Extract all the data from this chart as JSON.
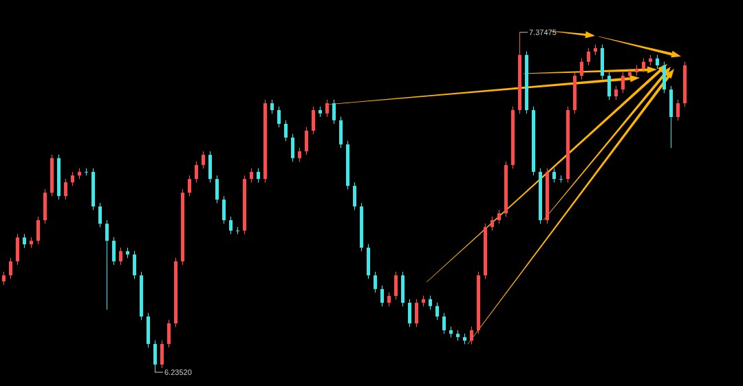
{
  "chart_data": {
    "type": "candlestick",
    "categories": [
      null,
      null,
      null,
      null,
      null,
      null,
      null,
      null,
      null,
      null,
      null,
      null,
      null,
      null,
      null,
      null,
      null,
      null,
      null,
      null,
      null,
      null,
      null,
      null,
      null,
      null,
      null,
      null,
      null,
      null,
      null,
      null,
      null,
      null,
      null,
      null,
      null,
      null,
      null,
      null,
      null,
      null,
      null,
      null,
      null,
      null,
      null,
      null,
      null,
      null,
      null,
      null,
      null,
      null,
      null,
      null,
      null,
      null,
      null,
      null,
      null,
      null,
      null,
      null,
      null,
      null,
      null,
      null,
      null,
      null,
      null,
      null,
      null,
      null,
      null,
      null,
      null,
      null,
      null,
      null,
      null,
      null,
      null,
      null,
      null,
      null,
      null,
      null,
      null,
      null,
      null,
      null,
      null,
      null,
      null,
      null,
      null,
      null,
      null,
      null
    ],
    "ohlc": [
      [
        6.54,
        6.572,
        6.528,
        6.56
      ],
      [
        6.56,
        6.619,
        6.548,
        6.607
      ],
      [
        6.607,
        6.699,
        6.595,
        6.687
      ],
      [
        6.687,
        6.699,
        6.652,
        6.664
      ],
      [
        6.664,
        6.688,
        6.652,
        6.676
      ],
      [
        6.676,
        6.757,
        6.664,
        6.745
      ],
      [
        6.745,
        6.849,
        6.733,
        6.837
      ],
      [
        6.837,
        6.965,
        6.825,
        6.953
      ],
      [
        6.953,
        6.965,
        6.814,
        6.826
      ],
      [
        6.826,
        6.884,
        6.814,
        6.872
      ],
      [
        6.872,
        6.907,
        6.86,
        6.895
      ],
      [
        6.895,
        6.919,
        6.883,
        6.907
      ],
      [
        6.907,
        6.919,
        6.895,
        6.907
      ],
      [
        6.907,
        6.919,
        6.779,
        6.791
      ],
      [
        6.791,
        6.803,
        6.721,
        6.733
      ],
      [
        6.733,
        6.745,
        6.445,
        6.676
      ],
      [
        6.676,
        6.688,
        6.595,
        6.607
      ],
      [
        6.607,
        6.653,
        6.595,
        6.641
      ],
      [
        6.641,
        6.653,
        6.618,
        6.63
      ],
      [
        6.63,
        6.642,
        6.548,
        6.56
      ],
      [
        6.56,
        6.572,
        6.41,
        6.422
      ],
      [
        6.422,
        6.434,
        6.318,
        6.33
      ],
      [
        6.33,
        6.342,
        6.2352,
        6.261
      ],
      [
        6.261,
        6.342,
        6.249,
        6.33
      ],
      [
        6.33,
        6.411,
        6.318,
        6.399
      ],
      [
        6.399,
        6.619,
        6.387,
        6.607
      ],
      [
        6.607,
        6.849,
        6.595,
        6.837
      ],
      [
        6.837,
        6.895,
        6.825,
        6.883
      ],
      [
        6.883,
        6.942,
        6.871,
        6.93
      ],
      [
        6.93,
        6.976,
        6.918,
        6.964
      ],
      [
        6.964,
        6.976,
        6.871,
        6.883
      ],
      [
        6.883,
        6.895,
        6.802,
        6.814
      ],
      [
        6.814,
        6.826,
        6.733,
        6.745
      ],
      [
        6.745,
        6.757,
        6.698,
        6.71
      ],
      [
        6.71,
        6.722,
        6.698,
        6.71
      ],
      [
        6.71,
        6.895,
        6.698,
        6.883
      ],
      [
        6.883,
        6.919,
        6.871,
        6.907
      ],
      [
        6.907,
        6.919,
        6.871,
        6.883
      ],
      [
        6.883,
        7.149,
        6.871,
        7.137
      ],
      [
        7.137,
        7.149,
        7.102,
        7.114
      ],
      [
        7.114,
        7.126,
        7.056,
        7.068
      ],
      [
        7.068,
        7.08,
        7.01,
        7.022
      ],
      [
        7.022,
        7.034,
        6.941,
        6.953
      ],
      [
        6.953,
        6.988,
        6.941,
        6.976
      ],
      [
        6.976,
        7.057,
        6.964,
        7.045
      ],
      [
        7.045,
        7.126,
        7.033,
        7.114
      ],
      [
        7.114,
        7.126,
        7.091,
        7.103
      ],
      [
        7.103,
        7.149,
        7.091,
        7.137
      ],
      [
        7.137,
        7.149,
        7.068,
        7.08
      ],
      [
        7.08,
        7.092,
        6.987,
        6.999
      ],
      [
        6.999,
        7.011,
        6.848,
        6.86
      ],
      [
        6.86,
        6.872,
        6.779,
        6.791
      ],
      [
        6.791,
        6.803,
        6.641,
        6.653
      ],
      [
        6.653,
        6.665,
        6.548,
        6.56
      ],
      [
        6.56,
        6.572,
        6.502,
        6.514
      ],
      [
        6.514,
        6.526,
        6.456,
        6.468
      ],
      [
        6.468,
        6.503,
        6.456,
        6.491
      ],
      [
        6.491,
        6.572,
        6.479,
        6.56
      ],
      [
        6.56,
        6.572,
        6.456,
        6.468
      ],
      [
        6.468,
        6.48,
        6.387,
        6.399
      ],
      [
        6.399,
        6.48,
        6.387,
        6.468
      ],
      [
        6.468,
        6.492,
        6.456,
        6.48
      ],
      [
        6.48,
        6.492,
        6.445,
        6.457
      ],
      [
        6.457,
        6.469,
        6.41,
        6.422
      ],
      [
        6.422,
        6.434,
        6.364,
        6.376
      ],
      [
        6.376,
        6.388,
        6.352,
        6.364
      ],
      [
        6.364,
        6.376,
        6.341,
        6.353
      ],
      [
        6.353,
        6.365,
        6.329,
        6.341
      ],
      [
        6.341,
        6.388,
        6.329,
        6.376
      ],
      [
        6.376,
        6.572,
        6.364,
        6.56
      ],
      [
        6.56,
        6.734,
        6.548,
        6.722
      ],
      [
        6.722,
        6.757,
        6.71,
        6.745
      ],
      [
        6.745,
        6.78,
        6.733,
        6.768
      ],
      [
        6.768,
        6.942,
        6.756,
        6.93
      ],
      [
        6.93,
        7.126,
        6.918,
        7.114
      ],
      [
        7.114,
        7.37475,
        7.102,
        7.299
      ],
      [
        7.299,
        7.311,
        7.102,
        7.114
      ],
      [
        7.114,
        7.126,
        6.895,
        6.907
      ],
      [
        6.907,
        6.919,
        6.733,
        6.745
      ],
      [
        6.745,
        6.919,
        6.733,
        6.907
      ],
      [
        6.907,
        6.919,
        6.871,
        6.883
      ],
      [
        6.883,
        6.895,
        6.871,
        6.883
      ],
      [
        6.883,
        7.126,
        6.871,
        7.114
      ],
      [
        7.114,
        7.241,
        7.102,
        7.229
      ],
      [
        7.229,
        7.288,
        7.217,
        7.276
      ],
      [
        7.276,
        7.322,
        7.264,
        7.31
      ],
      [
        7.31,
        7.334,
        7.298,
        7.322
      ],
      [
        7.322,
        7.334,
        7.217,
        7.229
      ],
      [
        7.229,
        7.241,
        7.148,
        7.16
      ],
      [
        7.16,
        7.195,
        7.148,
        7.183
      ],
      [
        7.183,
        7.241,
        7.171,
        7.229
      ],
      [
        7.229,
        7.253,
        7.217,
        7.241
      ],
      [
        7.241,
        7.265,
        7.229,
        7.253
      ],
      [
        7.253,
        7.288,
        7.241,
        7.276
      ],
      [
        7.276,
        7.299,
        7.264,
        7.287
      ],
      [
        7.287,
        7.299,
        7.252,
        7.264
      ],
      [
        7.264,
        7.276,
        7.171,
        7.183
      ],
      [
        7.183,
        7.195,
        6.987,
        7.091
      ],
      [
        7.091,
        7.149,
        7.079,
        7.137
      ],
      [
        7.137,
        7.276,
        7.125,
        7.264
      ]
    ],
    "colors": [
      "#ff4d4d",
      "#ff4d4d",
      "#ff4d4d",
      "#3ee8e8",
      "#ff4d4d",
      "#ff4d4d",
      "#ff4d4d",
      "#ff4d4d",
      "#3ee8e8",
      "#ff4d4d",
      "#ff4d4d",
      "#ff4d4d",
      "#3ee8e8",
      "#3ee8e8",
      "#3ee8e8",
      "#3ee8e8",
      "#3ee8e8",
      "#ff4d4d",
      "#3ee8e8",
      "#3ee8e8",
      "#3ee8e8",
      "#3ee8e8",
      "#3ee8e8",
      "#ff4d4d",
      "#ff4d4d",
      "#ff4d4d",
      "#ff4d4d",
      "#ff4d4d",
      "#ff4d4d",
      "#ff4d4d",
      "#3ee8e8",
      "#3ee8e8",
      "#3ee8e8",
      "#3ee8e8",
      "#3ee8e8",
      "#ff4d4d",
      "#ff4d4d",
      "#3ee8e8",
      "#ff4d4d",
      "#3ee8e8",
      "#3ee8e8",
      "#3ee8e8",
      "#3ee8e8",
      "#ff4d4d",
      "#ff4d4d",
      "#ff4d4d",
      "#3ee8e8",
      "#ff4d4d",
      "#3ee8e8",
      "#3ee8e8",
      "#3ee8e8",
      "#3ee8e8",
      "#3ee8e8",
      "#3ee8e8",
      "#3ee8e8",
      "#3ee8e8",
      "#ff4d4d",
      "#ff4d4d",
      "#3ee8e8",
      "#3ee8e8",
      "#ff4d4d",
      "#ff4d4d",
      "#3ee8e8",
      "#3ee8e8",
      "#3ee8e8",
      "#3ee8e8",
      "#3ee8e8",
      "#3ee8e8",
      "#ff4d4d",
      "#ff4d4d",
      "#ff4d4d",
      "#ff4d4d",
      "#ff4d4d",
      "#ff4d4d",
      "#ff4d4d",
      "#ff4d4d",
      "#3ee8e8",
      "#3ee8e8",
      "#3ee8e8",
      "#ff4d4d",
      "#3ee8e8",
      "#3ee8e8",
      "#ff4d4d",
      "#ff4d4d",
      "#ff4d4d",
      "#ff4d4d",
      "#ff4d4d",
      "#3ee8e8",
      "#3ee8e8",
      "#ff4d4d",
      "#ff4d4d",
      "#ff4d4d",
      "#ff4d4d",
      "#ff4d4d",
      "#ff4d4d",
      "#3ee8e8",
      "#3ee8e8",
      "#3ee8e8",
      "#ff4d4d",
      "#ff4d4d"
    ],
    "annotations": [
      "7.37475",
      "6.23520"
    ]
  }
}
